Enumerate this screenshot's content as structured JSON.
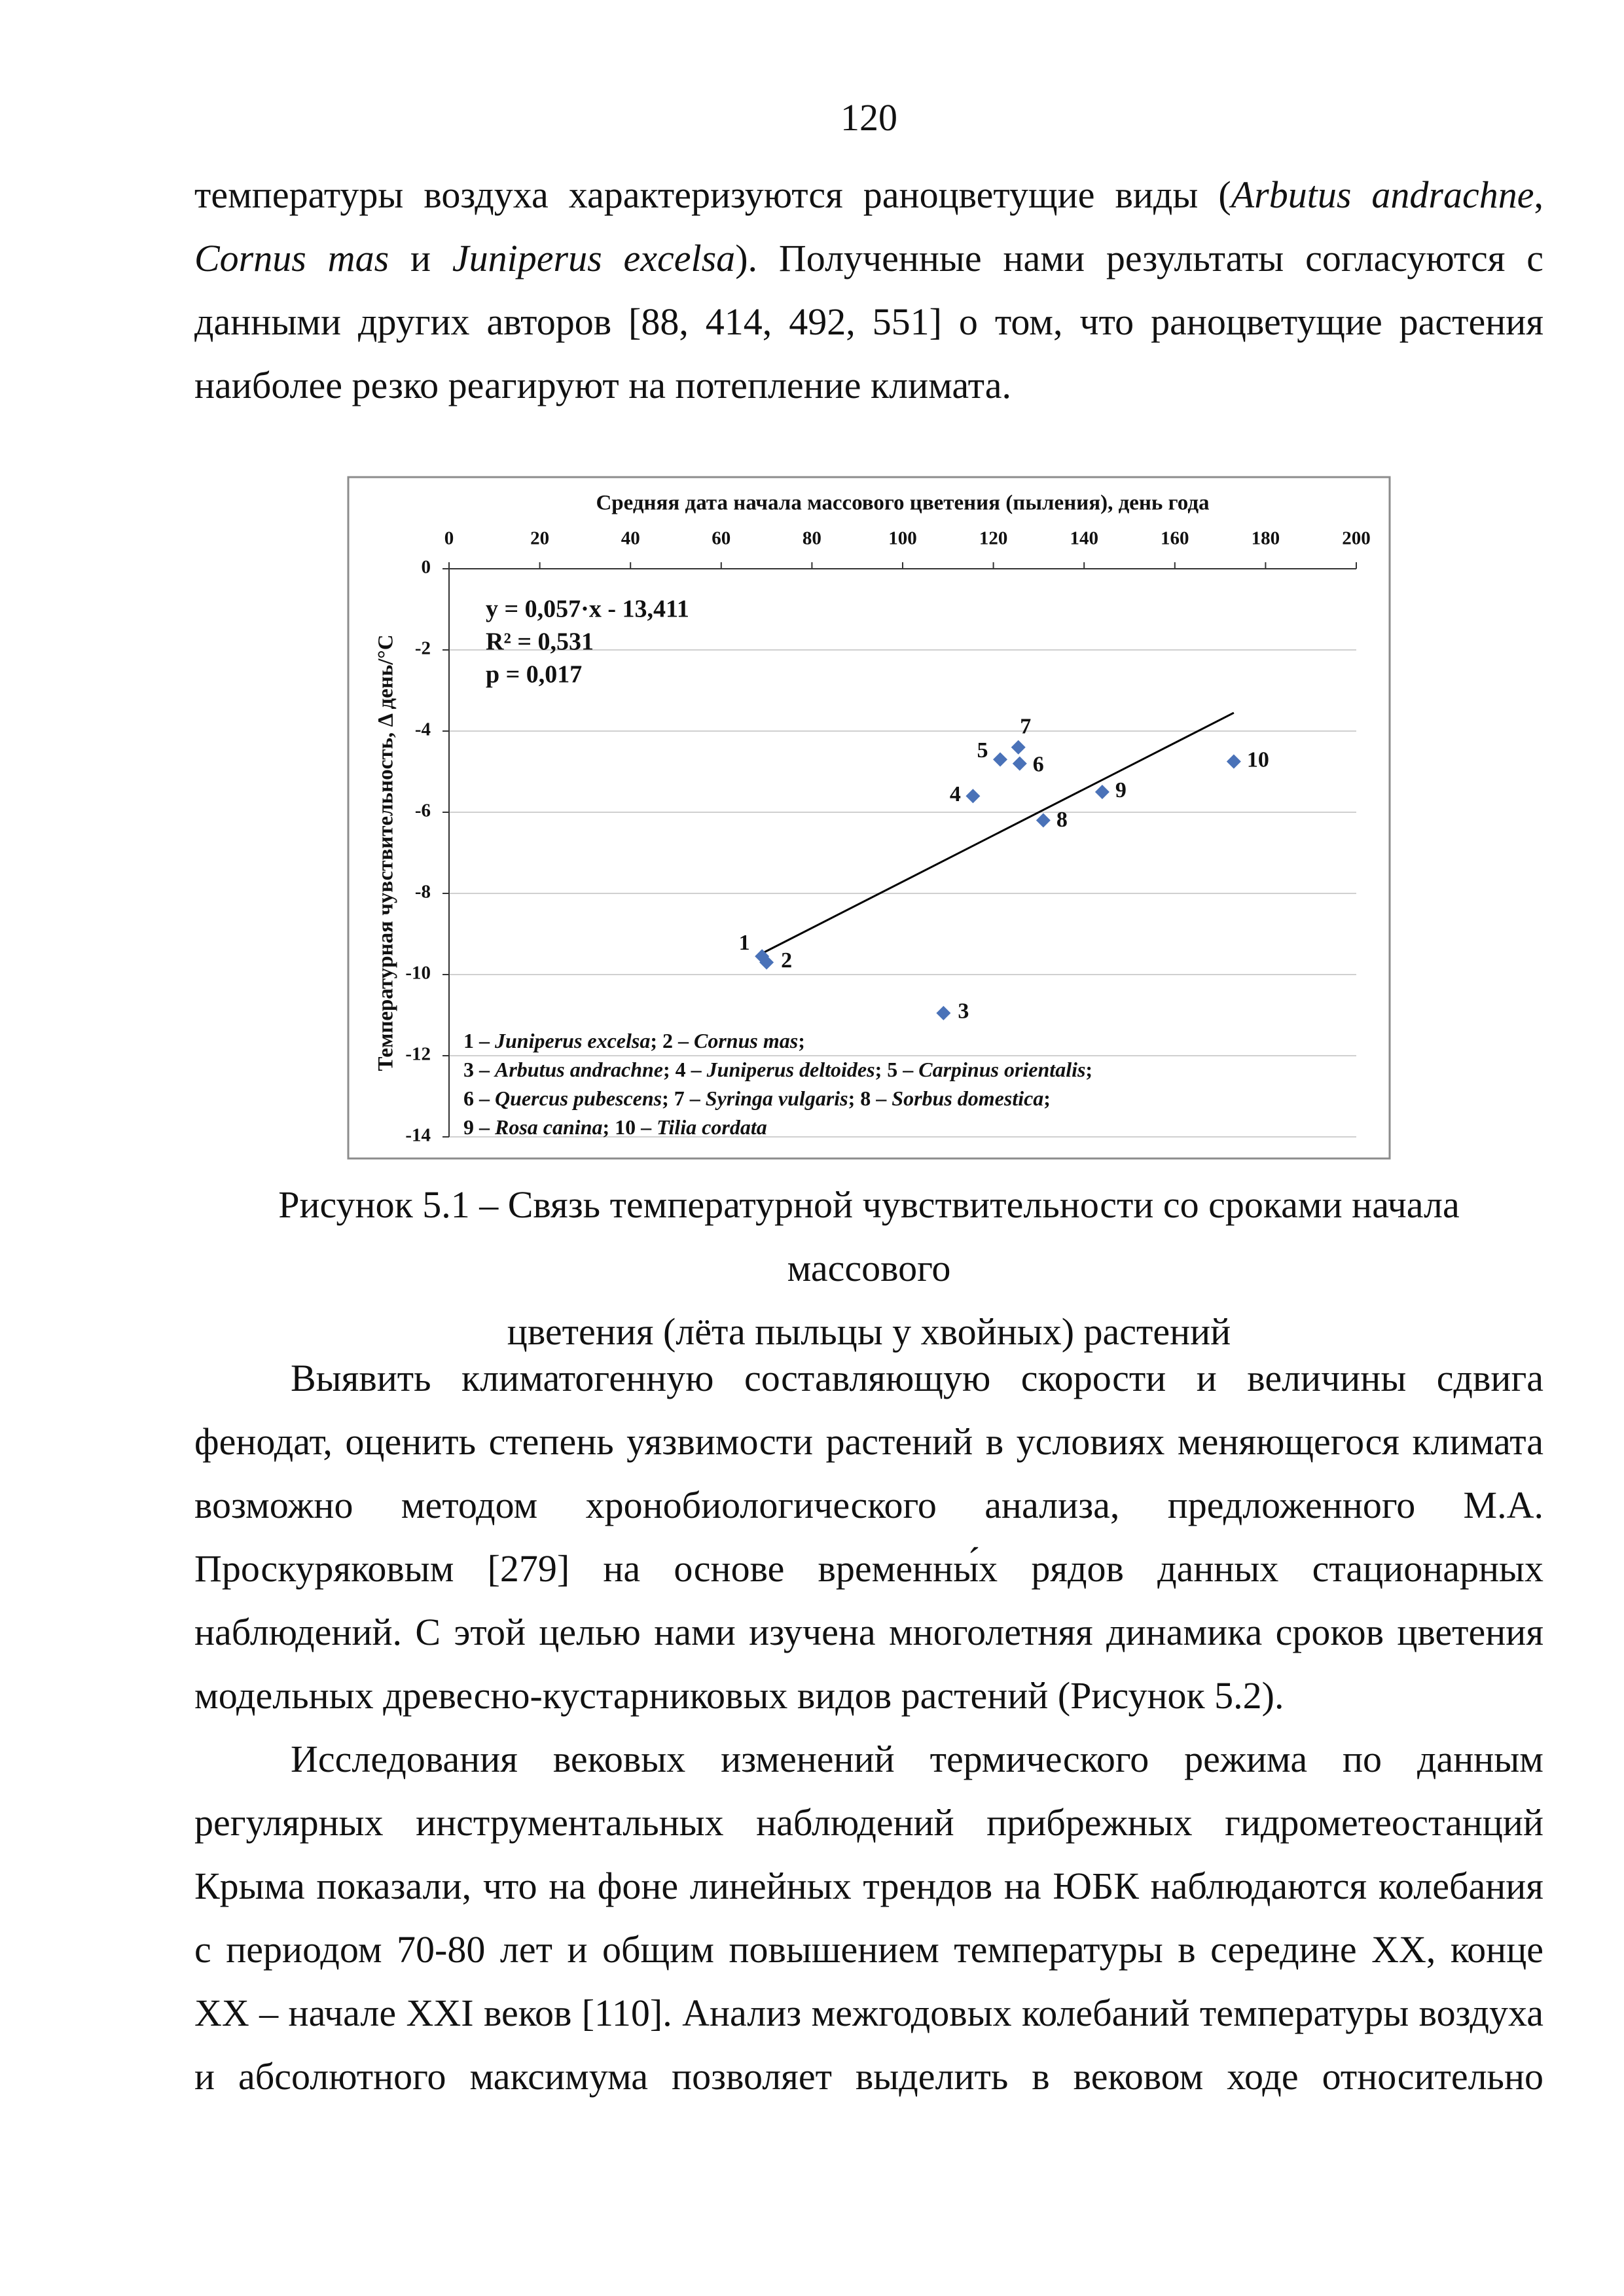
{
  "page_number": "120",
  "paragraph_1": [
    {
      "text": "температуры воздуха характеризуются раноцветущие виды ("
    },
    {
      "text": "Arbutus andrachne",
      "italic": true
    },
    {
      "text": ", "
    },
    {
      "text": "Cornus mas",
      "italic": true
    },
    {
      "text": " и "
    },
    {
      "text": "Juniperus excelsa",
      "italic": true
    },
    {
      "text": "). Полученные нами результаты согласуются с данными других авторов [88, 414, 492, 551] о том, что раноцветущие растения наиболее резко реагируют на потепление климата."
    }
  ],
  "chart_data": {
    "type": "scatter",
    "x_label": "Средняя дата начала массового цветения (пыления), день года",
    "y_label": "Температурная чувствительность, Δ день/°C",
    "xlim": [
      0,
      200
    ],
    "xticks": [
      0,
      20,
      40,
      60,
      80,
      100,
      120,
      140,
      160,
      180,
      200
    ],
    "ylim": [
      -14,
      0
    ],
    "yticks": [
      0,
      -2,
      -4,
      -6,
      -8,
      -10,
      -12,
      -14
    ],
    "grid": true,
    "series": [
      {
        "color": "#4a72b8",
        "x": [
          69,
          70,
          109,
          115.5,
          121.5,
          125.8,
          125.5,
          131,
          144,
          173
        ],
        "values": [
          -9.55,
          -9.7,
          -10.95,
          -5.6,
          -4.7,
          -4.8,
          -4.4,
          -6.2,
          -5.5,
          -4.75
        ],
        "point_labels": [
          "1",
          "2",
          "3",
          "4",
          "5",
          "6",
          "7",
          "8",
          "9",
          "10"
        ]
      }
    ],
    "trendline": {
      "slope": 0.057,
      "intercept": -13.411,
      "xlim": [
        69,
        173
      ],
      "color": "#000000"
    },
    "annotations": [
      "y = 0,057·x - 13,411",
      "R² = 0,531",
      "p = 0,017"
    ],
    "legend_lines": [
      [
        {
          "text": "1 – "
        },
        {
          "text": "Juniperus excelsa",
          "italic": true
        },
        {
          "text": "; 2 – "
        },
        {
          "text": "Cornus mas",
          "italic": true
        },
        {
          "text": ";"
        }
      ],
      [
        {
          "text": "3 – "
        },
        {
          "text": "Arbutus andrachne",
          "italic": true
        },
        {
          "text": "; 4 – "
        },
        {
          "text": "Juniperus deltoides",
          "italic": true
        },
        {
          "text": "; 5 – "
        },
        {
          "text": "Carpinus orientalis",
          "italic": true
        },
        {
          "text": ";"
        }
      ],
      [
        {
          "text": "6 – "
        },
        {
          "text": "Quercus pubescens",
          "italic": true
        },
        {
          "text": "; 7 – "
        },
        {
          "text": "Syringa vulgaris",
          "italic": true
        },
        {
          "text": "; 8 – "
        },
        {
          "text": "Sorbus domestica",
          "italic": true
        },
        {
          "text": ";"
        }
      ],
      [
        {
          "text": "9 – "
        },
        {
          "text": "Rosa canina",
          "italic": true
        },
        {
          "text": "; 10 – "
        },
        {
          "text": "Tilia cordata",
          "italic": true
        }
      ]
    ]
  },
  "caption": [
    "Рисунок 5.1 – Связь температурной чувствительности со сроками начала массового",
    "цветения (лёта пыльцы у хвойных) растений"
  ],
  "paragraph_2": "Выявить климатогенную составляющую скорости и величины сдвига фенодат, оценить степень уязвимости растений в условиях меняющегося климата возможно методом хронобиологического анализа, предложенного М.А. Проскуряковым [279] на основе временны́х рядов данных стационарных наблюдений. С этой целью нами изучена многолетняя динамика сроков цветения модельных древесно-кустарниковых видов растений (Рисунок 5.2).",
  "paragraph_3": "Исследования вековых изменений термического режима по данным регулярных инструментальных наблюдений прибрежных гидрометеостанций Крыма показали, что на фоне линейных трендов на ЮБК наблюдаются колебания с периодом 70-80 лет и общим повышением температуры в середине XX, конце XX – начале XXI веков [110]. Анализ межгодовых колебаний температуры воздуха и абсолютного максимума позволяет выделить в вековом ходе относительно"
}
